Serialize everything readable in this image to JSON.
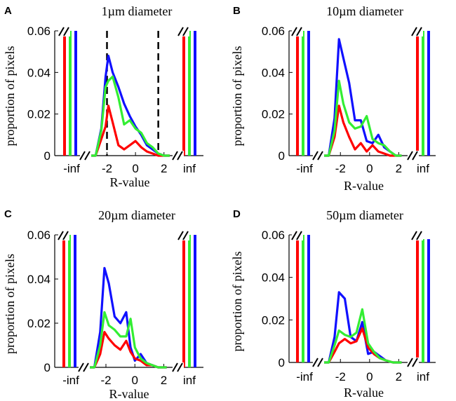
{
  "figure": {
    "ylabel": "proportion of pixels",
    "xlabel": "R-value"
  },
  "colors": {
    "red": "#ff0000",
    "green": "#33ee33",
    "blue": "#1010ff",
    "dashed": "#000000"
  },
  "chart_data": [
    {
      "type": "line",
      "panel": "A",
      "title": "1µm diameter",
      "xlabel": "R-value",
      "ylabel": "proportion of pixels",
      "ylim": [
        0,
        0.06
      ],
      "yticks": [
        "0",
        "0.02",
        "0.04",
        "0.06"
      ],
      "xticks": [
        "-2",
        "0",
        "2"
      ],
      "outer_ticks": [
        "-inf",
        "inf"
      ],
      "dashed_lines_x": [
        -2,
        1.6
      ],
      "x": [
        -3.4,
        -2.8,
        -2.4,
        -2.1,
        -1.9,
        -1.6,
        -1.2,
        -0.8,
        -0.4,
        0,
        0.4,
        0.8,
        1.2,
        1.6,
        2.0,
        2.4
      ],
      "series": [
        {
          "name": "red",
          "values": [
            0,
            0,
            0.008,
            0.014,
            0.024,
            0.016,
            0.005,
            0.003,
            0.005,
            0.007,
            0.004,
            0.002,
            0.001,
            0,
            0,
            0
          ]
        },
        {
          "name": "green",
          "values": [
            0,
            0,
            0.012,
            0.033,
            0.036,
            0.038,
            0.028,
            0.015,
            0.017,
            0.013,
            0.011,
            0.006,
            0.004,
            0.001,
            0,
            0
          ]
        },
        {
          "name": "blue",
          "values": [
            0,
            0,
            0.013,
            0.038,
            0.048,
            0.04,
            0.033,
            0.025,
            0.019,
            0.014,
            0.01,
            0.005,
            0.003,
            0.001,
            0,
            0
          ]
        }
      ],
      "inf_bars": {
        "neg": {
          "red": 0.06,
          "green": 0.06,
          "blue": 0.06
        },
        "pos": {
          "red": 0.06,
          "green": 0.06,
          "blue": 0.06
        }
      }
    },
    {
      "type": "line",
      "panel": "B",
      "title": "10µm diameter",
      "xlabel": "R-value",
      "ylabel": "proportion of pixels",
      "ylim": [
        0,
        0.06
      ],
      "yticks": [
        "0",
        "0.02",
        "0.04",
        "0.06"
      ],
      "xticks": [
        "-2",
        "0",
        "2"
      ],
      "outer_ticks": [
        "-inf",
        "inf"
      ],
      "x": [
        -3.4,
        -2.8,
        -2.4,
        -2.1,
        -1.8,
        -1.4,
        -1.0,
        -0.6,
        -0.2,
        0.2,
        0.6,
        1.0,
        1.4,
        1.8,
        2.2
      ],
      "series": [
        {
          "name": "red",
          "values": [
            0,
            0,
            0.009,
            0.024,
            0.016,
            0.009,
            0.003,
            0.006,
            0.002,
            0.005,
            0.002,
            0.001,
            0,
            0,
            0
          ]
        },
        {
          "name": "green",
          "values": [
            0,
            0,
            0.012,
            0.036,
            0.025,
            0.016,
            0.013,
            0.014,
            0.019,
            0.008,
            0.006,
            0.005,
            0.002,
            0,
            0
          ]
        },
        {
          "name": "blue",
          "values": [
            0,
            0,
            0.018,
            0.056,
            0.047,
            0.035,
            0.017,
            0.017,
            0.007,
            0.006,
            0.01,
            0.004,
            0.002,
            0,
            0
          ]
        }
      ],
      "inf_bars": {
        "neg": {
          "red": 0.06,
          "green": 0.06,
          "blue": 0.06
        },
        "pos": {
          "red": 0.06,
          "green": 0.06,
          "blue": 0.06
        }
      }
    },
    {
      "type": "line",
      "panel": "C",
      "title": "20µm diameter",
      "xlabel": "R-value",
      "ylabel": "proportion of pixels",
      "ylim": [
        0,
        0.06
      ],
      "yticks": [
        "0",
        "0.02",
        "0.04",
        "0.06"
      ],
      "xticks": [
        "-2",
        "0",
        "2"
      ],
      "outer_ticks": [
        "-inf",
        "inf"
      ],
      "x": [
        -3.4,
        -2.8,
        -2.4,
        -2.1,
        -1.8,
        -1.4,
        -1.0,
        -0.6,
        -0.3,
        0,
        0.4,
        0.8,
        1.2,
        1.6,
        2.2
      ],
      "series": [
        {
          "name": "red",
          "values": [
            0,
            0,
            0.006,
            0.016,
            0.013,
            0.01,
            0.008,
            0.012,
            0.007,
            0.004,
            0.003,
            0.001,
            0.001,
            0,
            0
          ]
        },
        {
          "name": "green",
          "values": [
            0,
            0,
            0.01,
            0.025,
            0.019,
            0.017,
            0.014,
            0.014,
            0.022,
            0.009,
            0.004,
            0.002,
            0.001,
            0,
            0
          ]
        },
        {
          "name": "blue",
          "values": [
            0,
            0,
            0.016,
            0.045,
            0.038,
            0.023,
            0.02,
            0.025,
            0.009,
            0.003,
            0.006,
            0.002,
            0.001,
            0,
            0
          ]
        }
      ],
      "inf_bars": {
        "neg": {
          "red": 0.06,
          "green": 0.06,
          "blue": 0.06
        },
        "pos": {
          "red": 0.06,
          "green": 0.06,
          "blue": 0.06
        }
      }
    },
    {
      "type": "line",
      "panel": "D",
      "title": "50µm diameter",
      "xlabel": "R-value",
      "ylabel": "proportion of pixels",
      "ylim": [
        0,
        0.06
      ],
      "yticks": [
        "0",
        "0.02",
        "0.04",
        "0.06"
      ],
      "xticks": [
        "-2",
        "0",
        "2"
      ],
      "outer_ticks": [
        "-inf",
        "inf"
      ],
      "x": [
        -3.4,
        -2.8,
        -2.4,
        -2.1,
        -1.7,
        -1.3,
        -0.9,
        -0.5,
        -0.1,
        0.3,
        0.7,
        1.1,
        1.6,
        2.2
      ],
      "series": [
        {
          "name": "red",
          "values": [
            0,
            0,
            0.005,
            0.009,
            0.011,
            0.009,
            0.01,
            0.016,
            0.007,
            0.004,
            0.002,
            0.001,
            0,
            0
          ]
        },
        {
          "name": "green",
          "values": [
            0,
            0,
            0.008,
            0.015,
            0.013,
            0.012,
            0.014,
            0.025,
            0.009,
            0.005,
            0.002,
            0.001,
            0,
            0
          ]
        },
        {
          "name": "blue",
          "values": [
            0,
            0,
            0.012,
            0.033,
            0.03,
            0.012,
            0.01,
            0.019,
            0.004,
            0.005,
            0.003,
            0.001,
            0,
            0
          ]
        }
      ],
      "inf_bars": {
        "neg": {
          "red": 0.06,
          "green": 0.06,
          "blue": 0.06
        },
        "pos": {
          "red": 0.058,
          "green": 0.058,
          "blue": 0.058
        }
      }
    }
  ]
}
